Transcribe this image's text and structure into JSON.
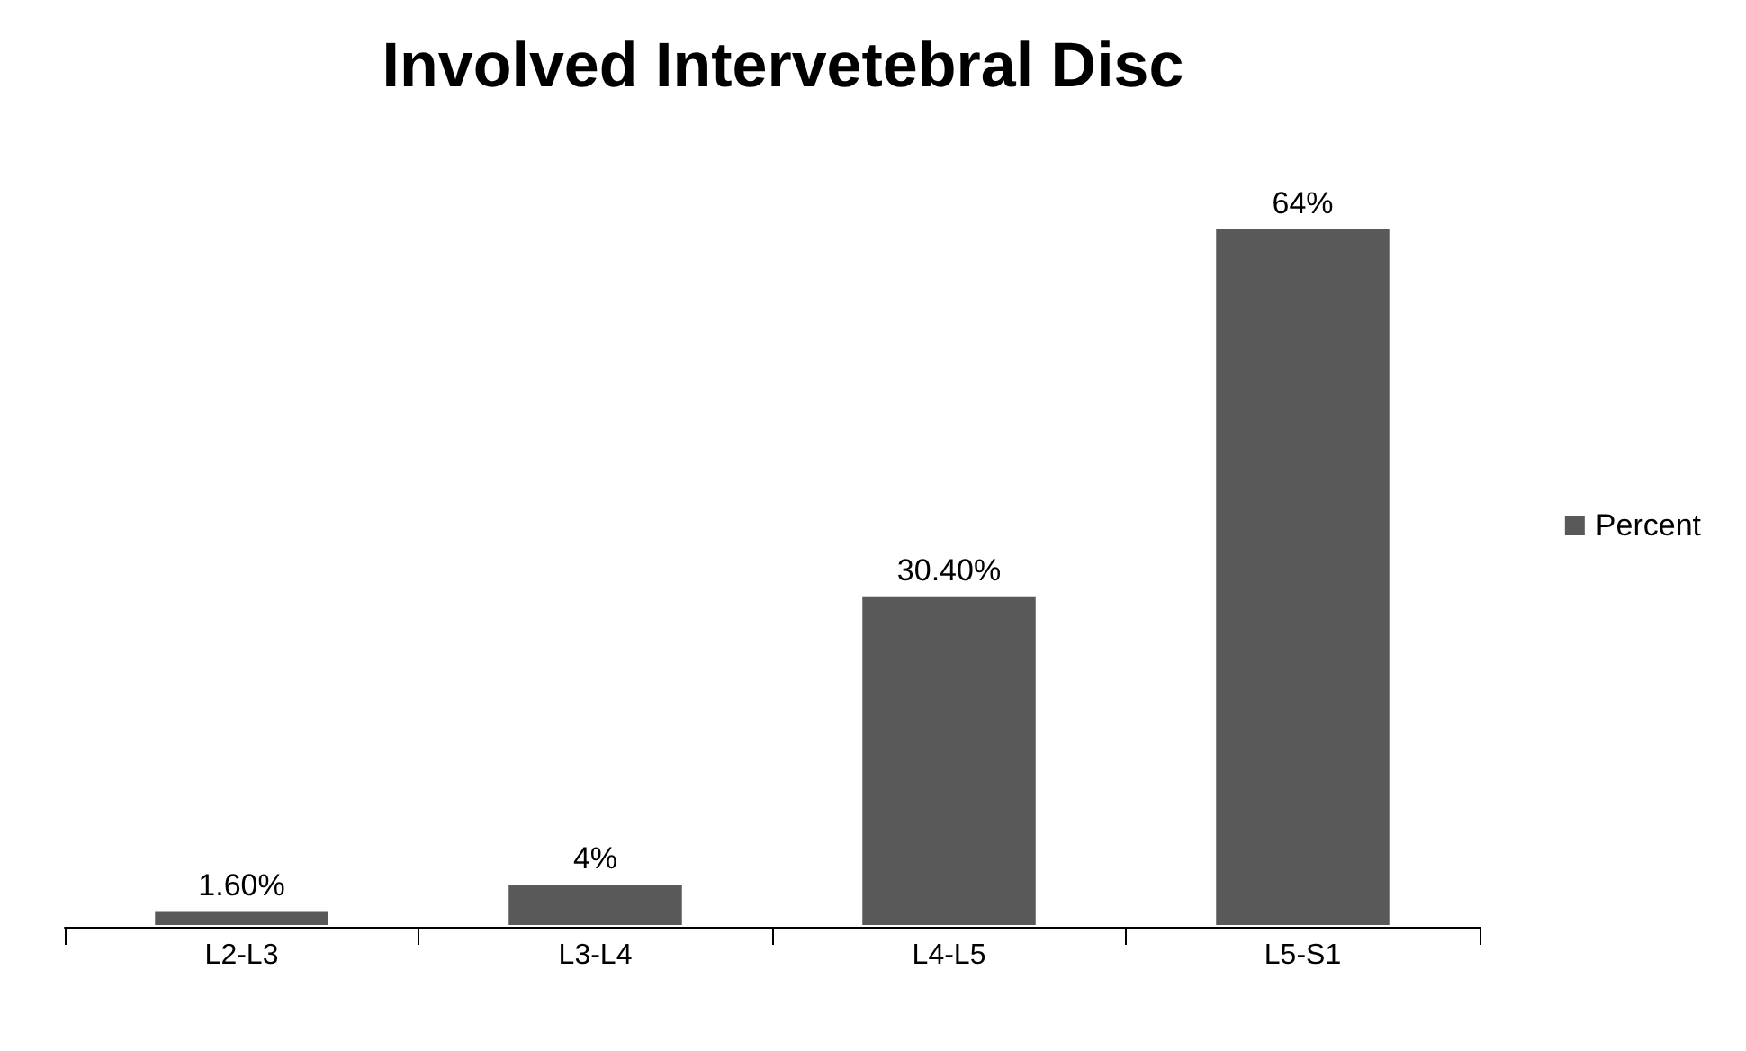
{
  "chart_data": {
    "type": "bar",
    "title": "Involved Intervetebral Disc",
    "categories": [
      "L2-L3",
      "L3-L4",
      "L4-L5",
      "L5-S1"
    ],
    "series": [
      {
        "name": "Percent",
        "color": "#595959",
        "values": [
          1.6,
          4,
          30.4,
          64
        ],
        "value_labels": [
          "1.60%",
          "4%",
          "30.40%",
          "64%"
        ]
      }
    ],
    "legend": "right",
    "grid": false
  }
}
